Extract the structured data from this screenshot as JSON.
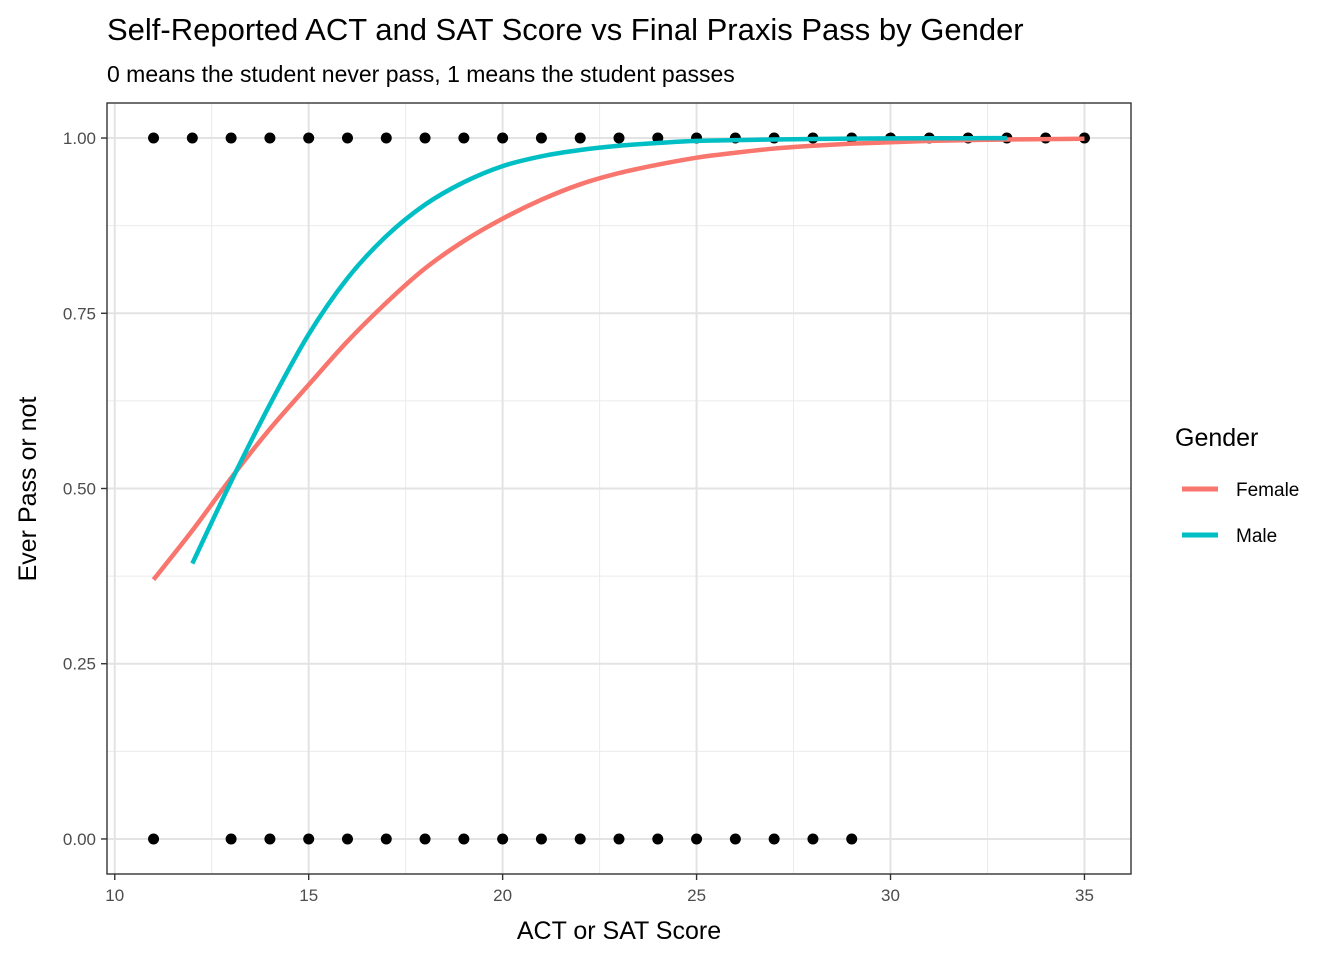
{
  "chart_data": {
    "type": "scatter",
    "title": "Self-Reported ACT and SAT Score vs Final Praxis Pass by Gender",
    "subtitle": "0 means the student never pass, 1 means the student passes",
    "xlabel": "ACT or SAT Score",
    "ylabel": "Ever Pass or not",
    "xlim": [
      9.8,
      36.2
    ],
    "ylim": [
      -0.05,
      1.05
    ],
    "x_ticks": [
      10,
      15,
      20,
      25,
      30,
      35
    ],
    "x_tick_labels": [
      "10",
      "15",
      "20",
      "25",
      "30",
      "35"
    ],
    "y_ticks": [
      0,
      0.25,
      0.5,
      0.75,
      1
    ],
    "y_tick_labels": [
      "0.00",
      "0.25",
      "0.50",
      "0.75",
      "1.00"
    ],
    "grid": true,
    "legend_position": "right",
    "legend": {
      "title": "Gender",
      "entries": [
        {
          "name": "Female",
          "color": "#F8766D"
        },
        {
          "name": "Male",
          "color": "#00BFC4"
        }
      ]
    },
    "points": {
      "color": "#000000",
      "y1_x": [
        11,
        12,
        13,
        14,
        15,
        16,
        17,
        18,
        19,
        20,
        21,
        22,
        23,
        24,
        25,
        26,
        27,
        28,
        29,
        30,
        31,
        32,
        33,
        34,
        35
      ],
      "y0_x": [
        11,
        13,
        14,
        15,
        16,
        17,
        18,
        19,
        20,
        21,
        22,
        23,
        24,
        25,
        26,
        27,
        28,
        29
      ]
    },
    "series": [
      {
        "name": "Female",
        "color": "#F8766D",
        "x": [
          11,
          12,
          13,
          14,
          15,
          16,
          17,
          18,
          19,
          20,
          21,
          22,
          23,
          24,
          25,
          26,
          27,
          28,
          29,
          30,
          31,
          32,
          33,
          34,
          35
        ],
        "y": [
          0.37,
          0.44,
          0.515,
          0.585,
          0.648,
          0.71,
          0.765,
          0.814,
          0.853,
          0.885,
          0.912,
          0.934,
          0.95,
          0.962,
          0.972,
          0.979,
          0.985,
          0.989,
          0.992,
          0.994,
          0.996,
          0.997,
          0.998,
          0.9985,
          0.999
        ]
      },
      {
        "name": "Male",
        "color": "#00BFC4",
        "x": [
          12,
          13,
          14,
          15,
          16,
          17,
          18,
          19,
          20,
          21,
          22,
          23,
          24,
          25,
          26,
          27,
          28,
          29,
          30,
          31,
          32,
          33
        ],
        "y": [
          0.393,
          0.51,
          0.62,
          0.72,
          0.8,
          0.86,
          0.905,
          0.937,
          0.96,
          0.974,
          0.983,
          0.989,
          0.993,
          0.996,
          0.997,
          0.998,
          0.9987,
          0.9992,
          0.9995,
          0.9997,
          0.9998,
          0.9999
        ]
      }
    ]
  }
}
